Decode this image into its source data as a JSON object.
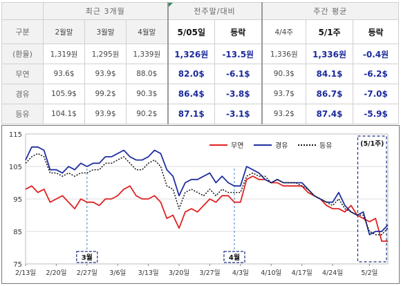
{
  "table": {
    "header_group": {
      "recent": "최근 3개월",
      "week_compare": "전주말/대비",
      "weekly_avg": "주간 평균"
    },
    "columns": [
      "구분",
      "2월말",
      "3월말",
      "4월말",
      "5/05일",
      "등락",
      "4/4주",
      "5/1주",
      "등락"
    ],
    "rows": [
      {
        "label": "(환율)",
        "cells": [
          "1,319원",
          "1,295원",
          "1,339원",
          "1,326원",
          "-13.5원",
          "1,336원",
          "1,336원",
          "-0.4원"
        ]
      },
      {
        "label": "무연",
        "cells": [
          "93.6$",
          "93.9$",
          "88.0$",
          "82.0$",
          "-6.1$",
          "90.3$",
          "84.1$",
          "-6.2$"
        ]
      },
      {
        "label": "경유",
        "cells": [
          "105.9$",
          "99.2$",
          "90.3$",
          "86.4$",
          "-3.8$",
          "93.7$",
          "86.7$",
          "-7.0$"
        ]
      },
      {
        "label": "등유",
        "cells": [
          "104.1$",
          "93.9$",
          "90.2$",
          "87.1$",
          "-3.1$",
          "93.2$",
          "87.4$",
          "-5.9$"
        ]
      }
    ]
  },
  "chart_data": {
    "type": "line",
    "ylim": [
      75,
      115
    ],
    "yticks": [
      "75",
      "85",
      "95",
      "105",
      "115"
    ],
    "xtick_labels": [
      "2/13일",
      "2/20일",
      "2/27일",
      "3/6일",
      "3/13일",
      "3/20일",
      "3/27일",
      "4/3일",
      "4/10일",
      "4/17일",
      "4/24일",
      "5/2일"
    ],
    "x": [
      "2/13",
      "2/14",
      "2/15",
      "2/16",
      "2/17",
      "2/20",
      "2/21",
      "2/22",
      "2/23",
      "2/24",
      "2/27",
      "2/28",
      "3/1",
      "3/2",
      "3/3",
      "3/6",
      "3/7",
      "3/8",
      "3/9",
      "3/10",
      "3/13",
      "3/14",
      "3/15",
      "3/16",
      "3/17",
      "3/20",
      "3/21",
      "3/22",
      "3/23",
      "3/24",
      "3/27",
      "3/28",
      "3/29",
      "3/30",
      "3/31",
      "4/3",
      "4/4",
      "4/5",
      "4/6",
      "4/7",
      "4/10",
      "4/11",
      "4/12",
      "4/13",
      "4/14",
      "4/17",
      "4/18",
      "4/19",
      "4/20",
      "4/21",
      "4/24",
      "4/25",
      "4/26",
      "4/27",
      "4/28",
      "5/1",
      "5/2",
      "5/3",
      "5/4",
      "5/5"
    ],
    "series": [
      {
        "name": "무연",
        "color": "#e02020",
        "style": "solid",
        "values": [
          98,
          99,
          97,
          98,
          94,
          95,
          96,
          94,
          92,
          95,
          94,
          94,
          93,
          95,
          95,
          96,
          98,
          99,
          96,
          95,
          95,
          96,
          94,
          89,
          90,
          86,
          91,
          92,
          91,
          93,
          95,
          94,
          96,
          96,
          94,
          94,
          101,
          102,
          101,
          101,
          100,
          100,
          99,
          99,
          99,
          99,
          97,
          96,
          95,
          93,
          92,
          92,
          91,
          93,
          90,
          89,
          88,
          89,
          82,
          82
        ]
      },
      {
        "name": "경유",
        "color": "#1f2fa0",
        "style": "solid",
        "values": [
          107,
          111,
          111,
          110,
          104,
          104,
          103,
          105,
          104,
          106,
          105,
          106,
          106,
          108,
          108,
          109,
          110,
          108,
          107,
          107,
          108,
          110,
          109,
          104,
          102,
          96,
          100,
          101,
          101,
          102,
          103,
          100,
          102,
          100,
          99,
          99,
          105,
          104,
          103,
          101,
          100,
          101,
          100,
          100,
          100,
          100,
          98,
          96,
          95,
          94,
          94,
          97,
          93,
          91,
          90,
          91,
          84,
          85,
          85,
          87
        ]
      },
      {
        "name": "등유",
        "color": "#111111",
        "style": "dotted",
        "values": [
          106,
          108,
          109,
          108,
          103,
          103,
          102,
          103,
          102,
          103,
          103,
          104,
          104,
          106,
          106,
          107,
          108,
          106,
          104,
          104,
          106,
          107,
          105,
          99,
          98,
          92,
          97,
          98,
          97,
          96,
          98,
          96,
          98,
          97,
          97,
          97,
          102,
          103,
          102,
          102,
          100,
          101,
          100,
          100,
          100,
          99,
          98,
          96,
          95,
          94,
          93,
          95,
          92,
          91,
          90,
          90,
          85,
          84,
          84,
          86
        ]
      }
    ],
    "legend_position": "top",
    "annotations": [
      {
        "text": "3월",
        "x": "2/27"
      },
      {
        "text": "4월",
        "x": "3/31"
      },
      {
        "text": "(5/1주)",
        "x": "5/1"
      }
    ]
  }
}
